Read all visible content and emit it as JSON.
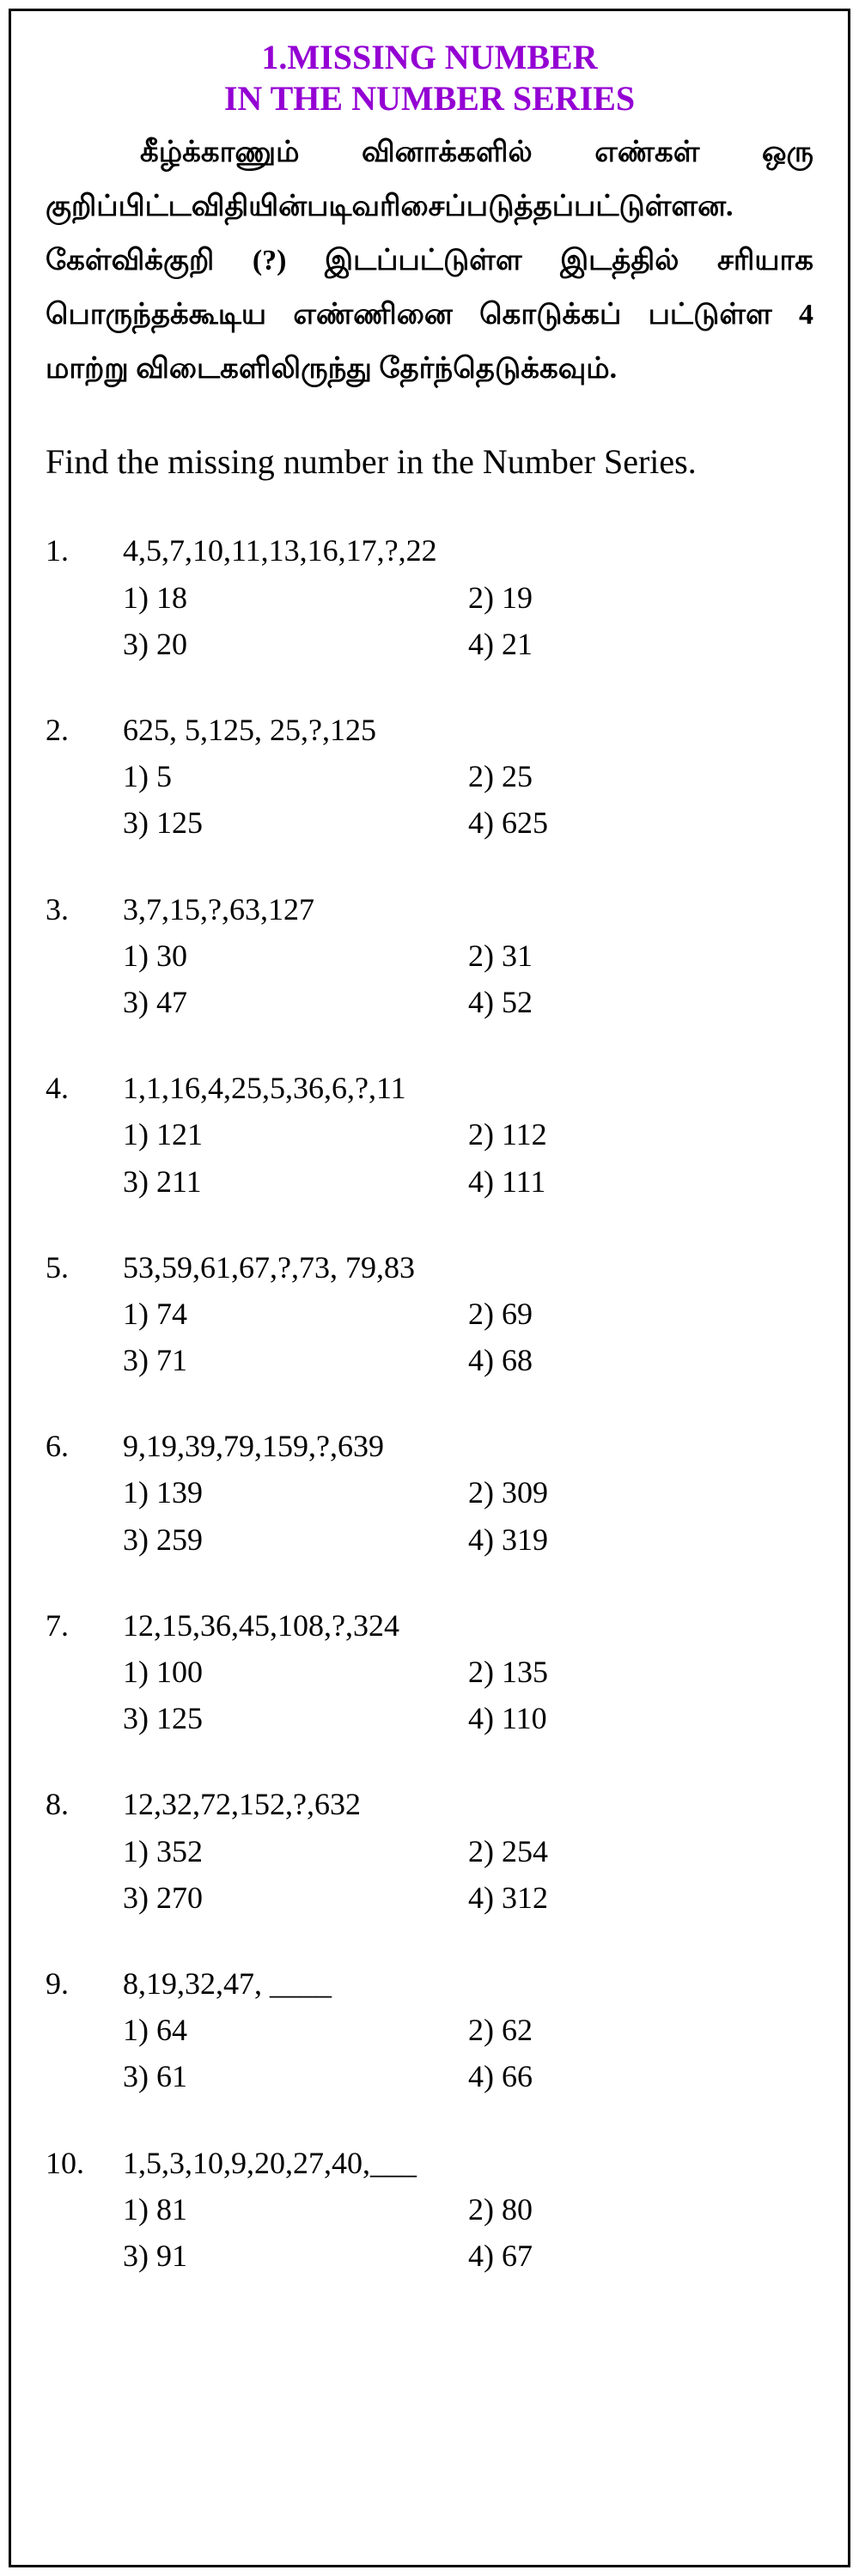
{
  "title": {
    "line1": "1.MISSING NUMBER",
    "line2": "IN THE NUMBER SERIES"
  },
  "tamilInstructions": "கீழ்க்காணும் வினாக்களில் எண்கள் ஒரு குறிப்பிட்டவிதியின்படிவரிசைப்படுத்தப்பட்டுள்ளன. கேள்விக்குறி (?) இடப்பட்டுள்ள இடத்தில் சரியாக பொருந்தக்கூடிய எண்ணினை கொடுக்கப் பட்டுள்ள 4 மாற்று விடைகளிலிருந்து தேர்ந்தெடுக்கவும்.",
  "englishInstructions": "Find the missing number in the Number Series.",
  "questions": [
    {
      "num": "1.",
      "series": "4,5,7,10,11,13,16,17,?,22",
      "opts": [
        "1) 18",
        "2) 19",
        "3) 20",
        "4) 21"
      ]
    },
    {
      "num": "2.",
      "series": "625, 5,125, 25,?,125",
      "opts": [
        "1) 5",
        "2) 25",
        "3) 125",
        "4) 625"
      ]
    },
    {
      "num": "3.",
      "series": "3,7,15,?,63,127",
      "opts": [
        "1) 30",
        "2) 31",
        "3) 47",
        "4) 52"
      ]
    },
    {
      "num": "4.",
      "series": "1,1,16,4,25,5,36,6,?,11",
      "opts": [
        "1) 121",
        "2) 112",
        "3) 211",
        "4) 111"
      ]
    },
    {
      "num": "5.",
      "series": "53,59,61,67,?,73, 79,83",
      "opts": [
        "1) 74",
        "2) 69",
        "3) 71",
        "4) 68"
      ]
    },
    {
      "num": "6.",
      "series": "9,19,39,79,159,?,639",
      "opts": [
        "1) 139",
        "2) 309",
        "3) 259",
        "4) 319"
      ]
    },
    {
      "num": "7.",
      "series": "12,15,36,45,108,?,324",
      "opts": [
        "1) 100",
        "2) 135",
        "3) 125",
        "4) 110"
      ]
    },
    {
      "num": "8.",
      "series": "12,32,72,152,?,632",
      "opts": [
        "1) 352",
        "2) 254",
        "3) 270",
        "4) 312"
      ]
    },
    {
      "num": "9.",
      "series": "8,19,32,47, ____",
      "opts": [
        "1) 64",
        "2) 62",
        "3) 61",
        "4) 66"
      ]
    },
    {
      "num": "10.",
      "series": "1,5,3,10,9,20,27,40,___",
      "opts": [
        "1) 81",
        "2) 80",
        "3) 91",
        "4) 67"
      ]
    }
  ]
}
